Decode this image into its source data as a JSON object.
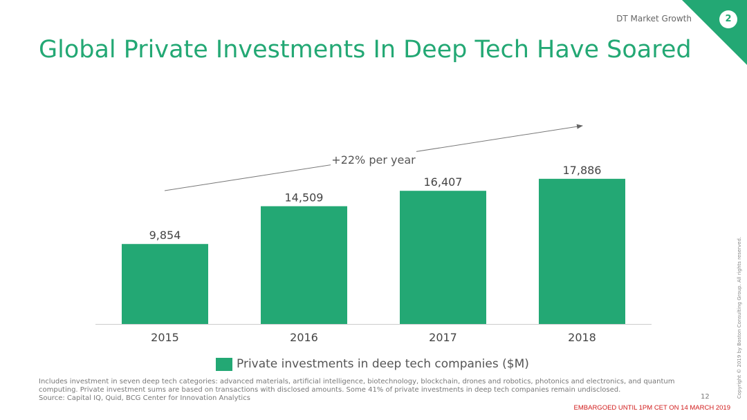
{
  "header": {
    "section_label": "DT Market Growth",
    "section_number": "2",
    "title": "Global Private Investments In Deep Tech Have Soared"
  },
  "colors": {
    "accent": "#23a874",
    "text": "#444444",
    "embargo": "#d11a1a"
  },
  "chart_data": {
    "type": "bar",
    "categories": [
      "2015",
      "2016",
      "2017",
      "2018"
    ],
    "values": [
      9854,
      14509,
      16407,
      17886
    ],
    "value_labels": [
      "9,854",
      "14,509",
      "16,407",
      "17,886"
    ],
    "series_name": "Private investments in deep tech companies ($M)",
    "annotation": "+22% per year",
    "ylim": [
      0,
      20000
    ],
    "grid": false,
    "legend_position": "bottom"
  },
  "footer": {
    "note_lines": [
      "Includes investment in seven deep tech categories:  advanced materials, artificial intelligence, biotechnology, blockchain, drones and robotics, photonics and electronics, and quantum",
      "computing.  Private investment sums are based on transactions with disclosed amounts.  Some 41% of private investments in deep tech companies remain undisclosed.",
      "Source: Capital IQ, Quid, BCG Center for Innovation Analytics"
    ],
    "page_number": "12",
    "embargo": "EMBARGOED UNTIL 1PM CET ON 14 MARCH 2019",
    "copyright": "Copyright © 2019 by Boston Consulting Group. All rights reserved."
  }
}
